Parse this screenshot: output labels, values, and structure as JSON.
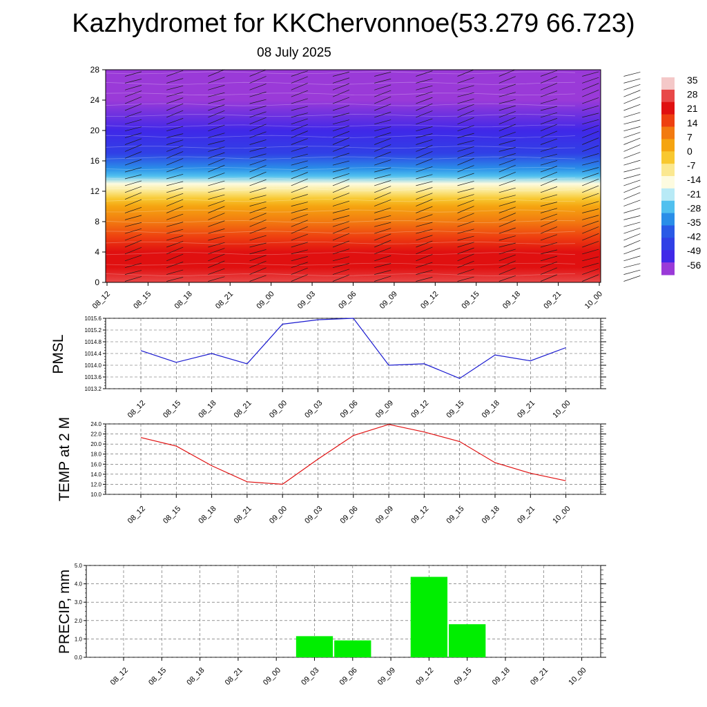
{
  "header": {
    "title": "Kazhydromet for KKChervonnoe(53.279 66.723)",
    "date": "08 July 2025"
  },
  "colors": {
    "pmsl_line": "#1a1ad0",
    "temp_line": "#e01010",
    "precip_bar": "#00ee00",
    "colorbar": [
      "#f4c8c8",
      "#e84848",
      "#e01010",
      "#ee4010",
      "#f27a10",
      "#f5a410",
      "#f8c830",
      "#fbe890",
      "#fdfbe0",
      "#b8eaf6",
      "#50c0ef",
      "#2a8ee8",
      "#2a5ae6",
      "#3040e6",
      "#4028e8",
      "#9a3ad8"
    ]
  },
  "chart_data": [
    {
      "type": "heatmap",
      "description_level": "cross-section",
      "x_ticks": [
        "08_12",
        "08_15",
        "08_18",
        "08_21",
        "09_00",
        "09_03",
        "09_06",
        "09_09",
        "09_12",
        "09_15",
        "09_18",
        "09_21",
        "10_00"
      ],
      "y_ticks": [
        "0",
        "4",
        "8",
        "12",
        "16",
        "20",
        "24",
        "28"
      ],
      "ylim": [
        0,
        28
      ],
      "colorbar_ticks": [
        "35",
        "28",
        "21",
        "14",
        "7",
        "0",
        "-7",
        "-14",
        "-21",
        "-28",
        "-35",
        "-42",
        "-49",
        "-56"
      ],
      "temperature_by_height": [
        {
          "h": 0,
          "t": 24
        },
        {
          "h": 2,
          "t": 22
        },
        {
          "h": 4,
          "t": 18
        },
        {
          "h": 6,
          "t": 14
        },
        {
          "h": 8,
          "t": 10
        },
        {
          "h": 10,
          "t": 5
        },
        {
          "h": 11,
          "t": 0
        },
        {
          "h": 12,
          "t": -8
        },
        {
          "h": 13,
          "t": -16
        },
        {
          "h": 14,
          "t": -24
        },
        {
          "h": 15,
          "t": -32
        },
        {
          "h": 17,
          "t": -42
        },
        {
          "h": 20,
          "t": -48
        },
        {
          "h": 24,
          "t": -54
        },
        {
          "h": 28,
          "t": -58
        }
      ]
    },
    {
      "type": "line",
      "ylabel": "PMSL",
      "x": [
        "08_12",
        "08_15",
        "08_18",
        "08_21",
        "09_00",
        "09_03",
        "09_06",
        "09_09",
        "09_12",
        "09_15",
        "09_18",
        "09_21",
        "10_00"
      ],
      "values": [
        1014.5,
        1014.1,
        1014.4,
        1014.05,
        1015.4,
        1015.55,
        1015.6,
        1014.0,
        1014.05,
        1013.55,
        1014.35,
        1014.15,
        1014.6
      ],
      "ylim": [
        1013.2,
        1015.6
      ],
      "y_ticks": [
        "1013.2",
        "1013.6",
        "1014.0",
        "1014.4",
        "1014.8",
        "1015.2",
        "1015.6"
      ],
      "grid": true
    },
    {
      "type": "line",
      "ylabel": "TEMP at 2 M",
      "x": [
        "08_12",
        "08_15",
        "08_18",
        "08_21",
        "09_00",
        "09_03",
        "09_06",
        "09_09",
        "09_12",
        "09_15",
        "09_18",
        "09_21",
        "10_00"
      ],
      "values": [
        21.3,
        19.6,
        15.7,
        12.5,
        12.0,
        17.0,
        21.7,
        23.9,
        22.4,
        20.5,
        16.3,
        14.2,
        12.7
      ],
      "ylim": [
        10.0,
        24.0
      ],
      "y_ticks": [
        "10.0",
        "12.0",
        "14.0",
        "16.0",
        "18.0",
        "20.0",
        "22.0",
        "24.0"
      ],
      "grid": true
    },
    {
      "type": "bar",
      "ylabel": "PRECIP, mm",
      "categories": [
        "08_12",
        "08_15",
        "08_18",
        "08_21",
        "09_00",
        "09_03",
        "09_06",
        "09_09",
        "09_12",
        "09_15",
        "09_18",
        "09_21",
        "10_00"
      ],
      "values": [
        0,
        0,
        0,
        0,
        0,
        1.15,
        0.92,
        0,
        4.38,
        1.8,
        0,
        0,
        0
      ],
      "ylim": [
        0.0,
        5.0
      ],
      "y_ticks": [
        "0.0",
        "1.0",
        "2.0",
        "3.0",
        "4.0",
        "5.0"
      ],
      "grid": true
    }
  ]
}
